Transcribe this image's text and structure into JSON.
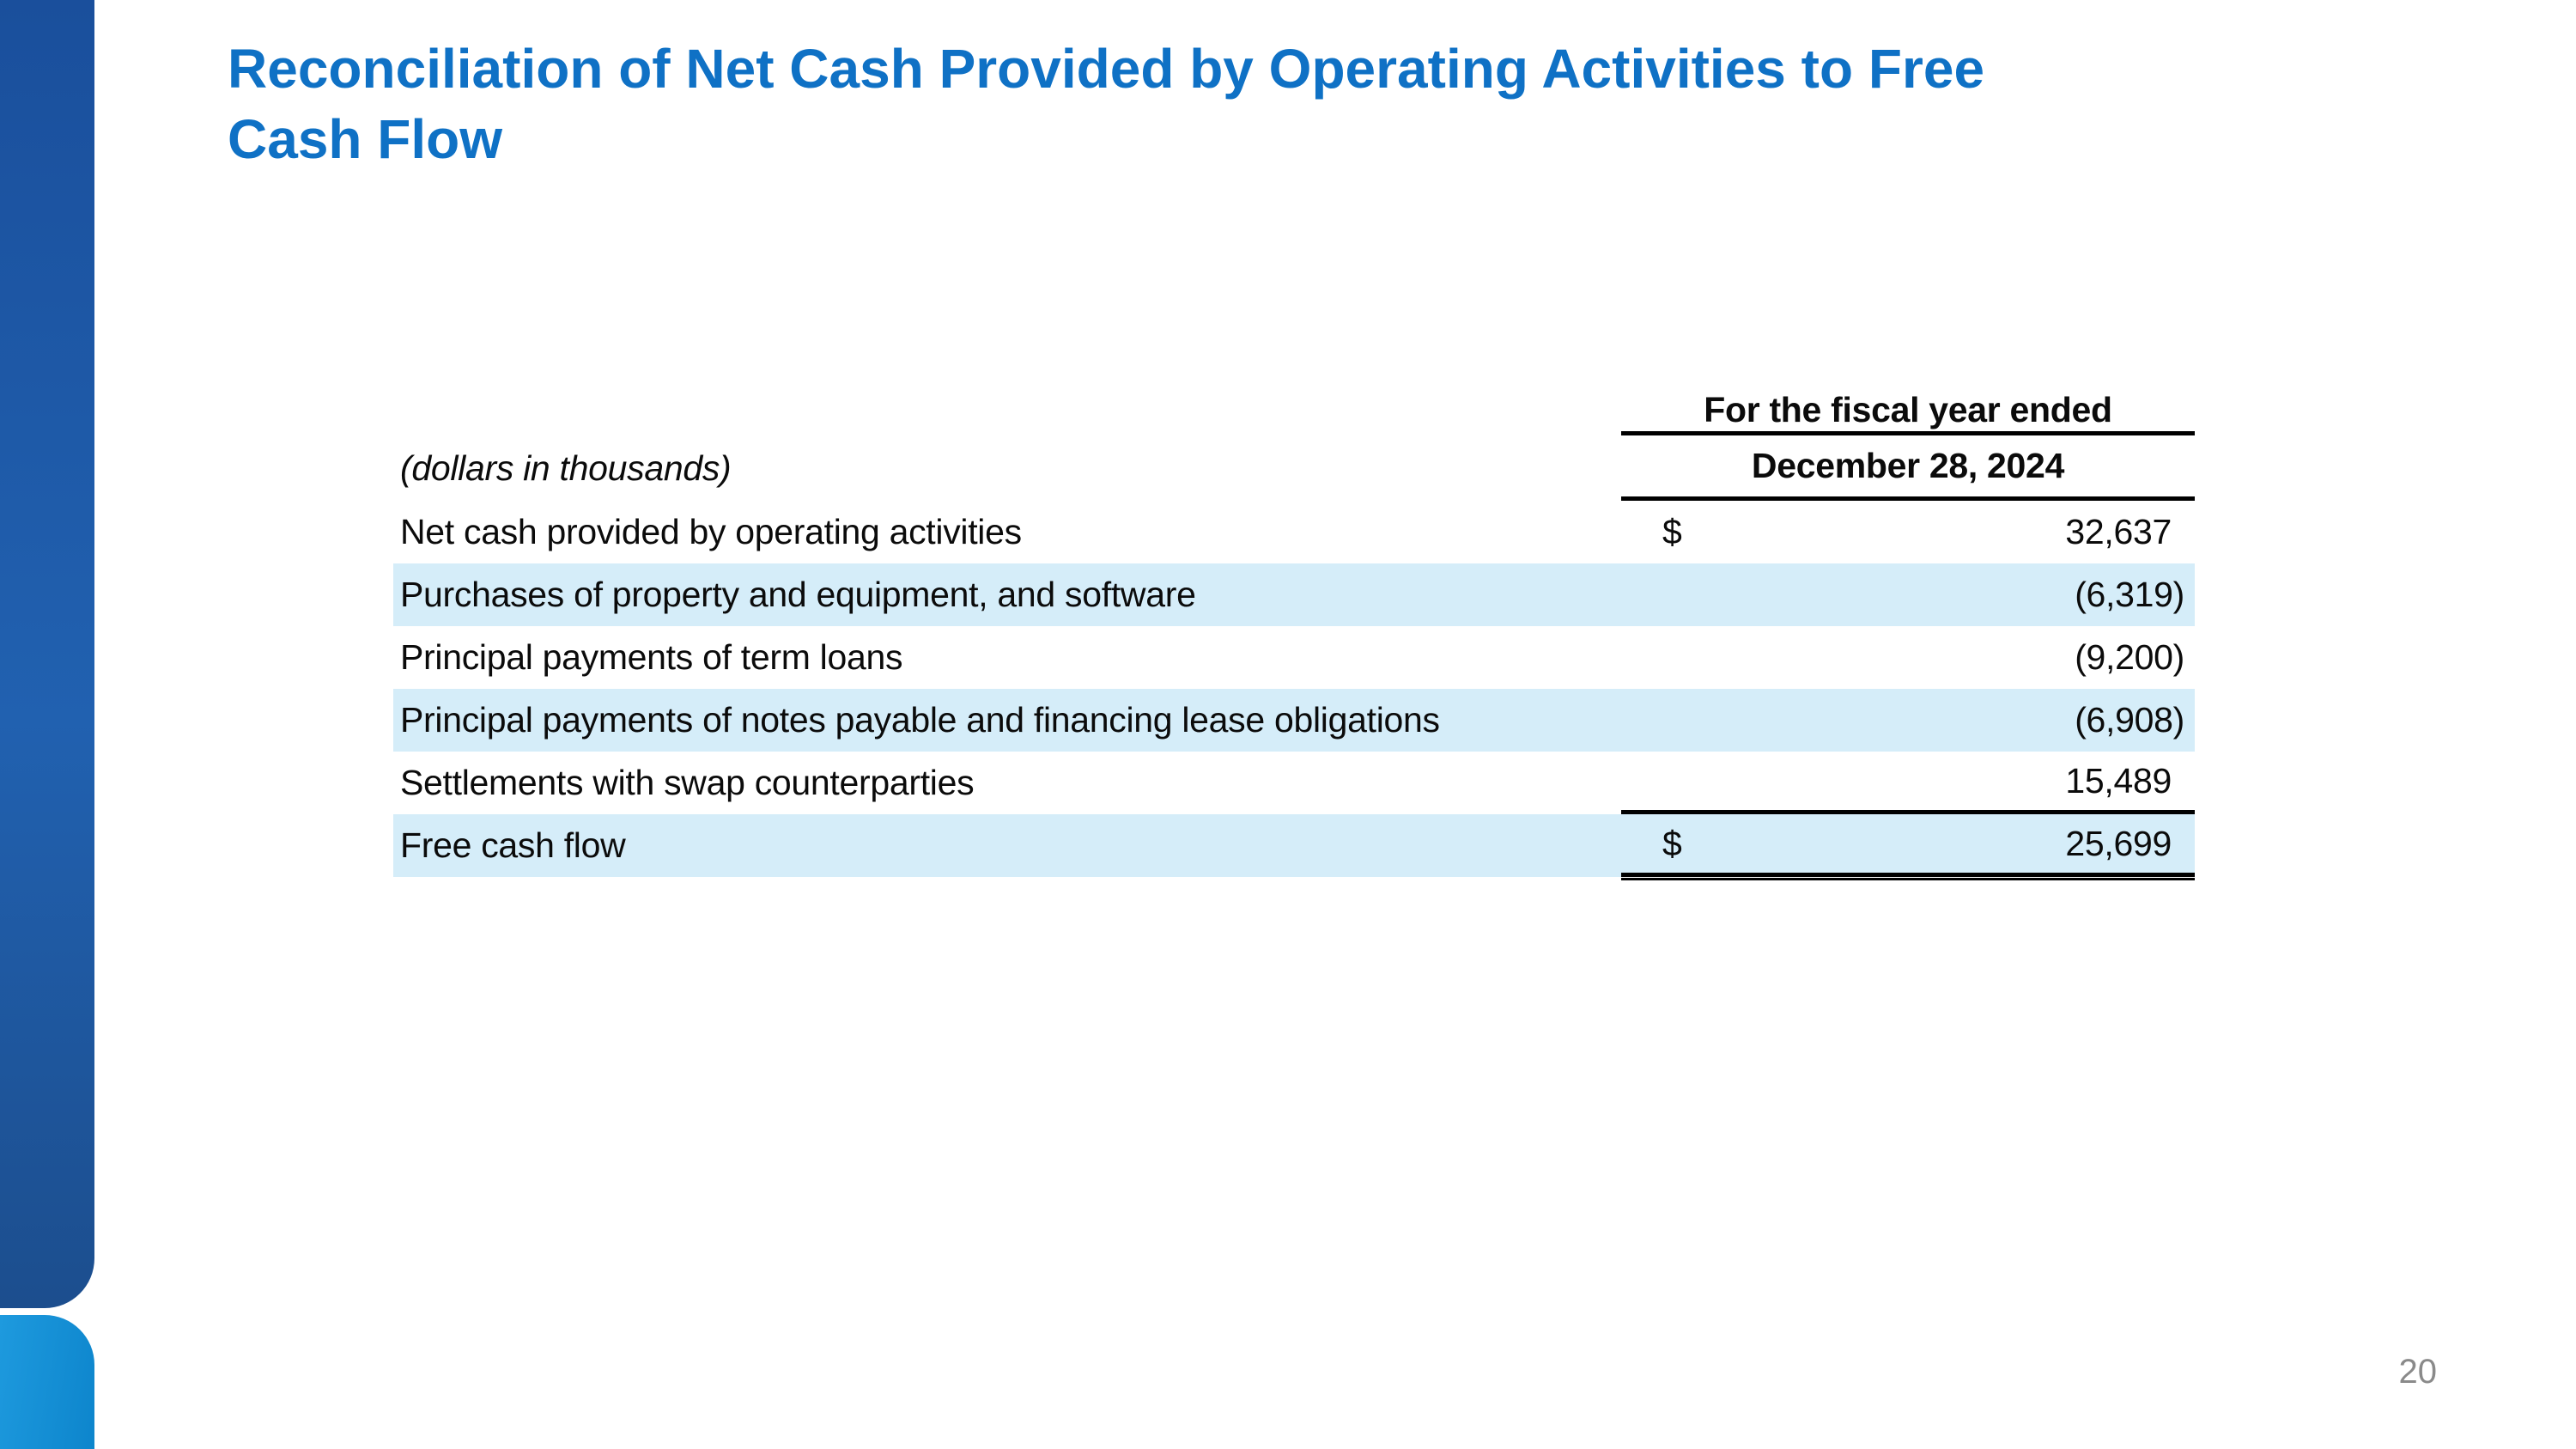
{
  "title": {
    "line1": "Reconciliation of Net Cash Provided by Operating Activities to Free",
    "line2": "Cash Flow",
    "full": "Reconciliation of Net Cash Provided by Operating Activities to Free Cash Flow"
  },
  "table": {
    "units_note": "(dollars in thousands)",
    "period_header": "For the fiscal year ended",
    "date_header": "December 28, 2024",
    "rows": [
      {
        "label": "Net cash provided by operating activities",
        "currency": "$",
        "value": "32,637"
      },
      {
        "label": "Purchases of property and equipment, and software",
        "currency": "",
        "value": "(6,319)"
      },
      {
        "label": "Principal payments of term loans",
        "currency": "",
        "value": "(9,200)"
      },
      {
        "label": "Principal payments of notes payable and financing lease obligations",
        "currency": "",
        "value": "(6,908)"
      },
      {
        "label": "Settlements with swap counterparties",
        "currency": "",
        "value": "15,489"
      },
      {
        "label": "Free cash flow",
        "currency": "$",
        "value": "25,699"
      }
    ]
  },
  "page": {
    "number": "20"
  },
  "colors": {
    "title_blue": "#0f71c5",
    "row_highlight": "#d5edf9",
    "bar_dark_blue": "#1f5aa6",
    "bar_light_blue": "#128fd5",
    "page_number_gray": "#8a8a8a",
    "rule_black": "#000000"
  }
}
